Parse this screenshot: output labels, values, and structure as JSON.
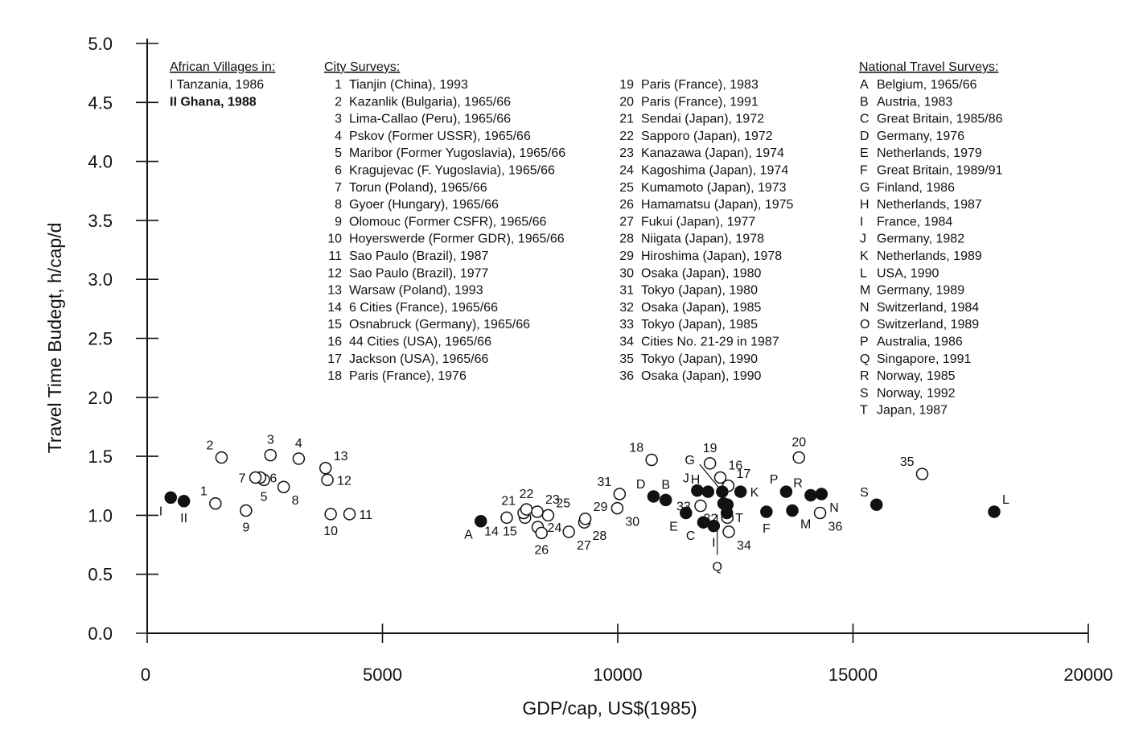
{
  "chart_data": {
    "type": "scatter",
    "xlabel": "GDP/cap, US$(1985)",
    "ylabel": "Travel Time Budegt, h/cap/d",
    "xlim": [
      0,
      20000
    ],
    "ylim": [
      0,
      5
    ],
    "x_ticks": [
      0,
      5000,
      10000,
      15000,
      20000
    ],
    "y_ticks": [
      0.0,
      0.5,
      1.0,
      1.5,
      2.0,
      2.5,
      3.0,
      3.5,
      4.0,
      4.5,
      5.0
    ],
    "x_tick_labels": [
      "0",
      "5000",
      "10000",
      "15000",
      "20000"
    ],
    "y_tick_labels": [
      "0.0",
      "0.5",
      "1.0",
      "1.5",
      "2.0",
      "2.5",
      "3.0",
      "3.5",
      "4.0",
      "4.5",
      "5.0"
    ],
    "legend": {
      "african": {
        "title": "African Villages in:",
        "items": [
          "I  Tanzania, 1986",
          "II Ghana, 1988"
        ]
      },
      "city_col1": {
        "title": "City Surveys:",
        "items": [
          {
            "n": "1",
            "t": "Tianjin (China), 1993"
          },
          {
            "n": "2",
            "t": "Kazanlik (Bulgaria), 1965/66"
          },
          {
            "n": "3",
            "t": "Lima-Callao (Peru), 1965/66"
          },
          {
            "n": "4",
            "t": "Pskov (Former USSR), 1965/66"
          },
          {
            "n": "5",
            "t": "Maribor (Former Yugoslavia), 1965/66"
          },
          {
            "n": "6",
            "t": "Kragujevac (F. Yugoslavia), 1965/66"
          },
          {
            "n": "7",
            "t": "Torun (Poland), 1965/66"
          },
          {
            "n": "8",
            "t": "Gyoer (Hungary), 1965/66"
          },
          {
            "n": "9",
            "t": "Olomouc (Former CSFR), 1965/66"
          },
          {
            "n": "10",
            "t": "Hoyerswerde (Former GDR), 1965/66"
          },
          {
            "n": "11",
            "t": "Sao Paulo (Brazil), 1987"
          },
          {
            "n": "12",
            "t": "Sao Paulo (Brazil), 1977"
          },
          {
            "n": "13",
            "t": "Warsaw (Poland), 1993"
          },
          {
            "n": "14",
            "t": "6 Cities (France), 1965/66"
          },
          {
            "n": "15",
            "t": "Osnabruck (Germany), 1965/66"
          },
          {
            "n": "16",
            "t": "44 Cities (USA), 1965/66"
          },
          {
            "n": "17",
            "t": "Jackson (USA), 1965/66"
          },
          {
            "n": "18",
            "t": "Paris (France), 1976"
          }
        ]
      },
      "city_col2": {
        "items": [
          {
            "n": "19",
            "t": "Paris (France), 1983"
          },
          {
            "n": "20",
            "t": "Paris (France), 1991"
          },
          {
            "n": "21",
            "t": "Sendai (Japan), 1972"
          },
          {
            "n": "22",
            "t": "Sapporo (Japan), 1972"
          },
          {
            "n": "23",
            "t": "Kanazawa (Japan), 1974"
          },
          {
            "n": "24",
            "t": "Kagoshima (Japan), 1974"
          },
          {
            "n": "25",
            "t": "Kumamoto (Japan), 1973"
          },
          {
            "n": "26",
            "t": "Hamamatsu (Japan), 1975"
          },
          {
            "n": "27",
            "t": "Fukui (Japan), 1977"
          },
          {
            "n": "28",
            "t": "Niigata (Japan), 1978"
          },
          {
            "n": "29",
            "t": "Hiroshima (Japan), 1978"
          },
          {
            "n": "30",
            "t": "Osaka (Japan), 1980"
          },
          {
            "n": "31",
            "t": "Tokyo (Japan), 1980"
          },
          {
            "n": "32",
            "t": "Osaka (Japan), 1985"
          },
          {
            "n": "33",
            "t": "Tokyo (Japan), 1985"
          },
          {
            "n": "34",
            "t": "Cities No. 21-29 in 1987"
          },
          {
            "n": "35",
            "t": "Tokyo (Japan), 1990"
          },
          {
            "n": "36",
            "t": "Osaka (Japan), 1990"
          }
        ]
      },
      "national": {
        "title": "National Travel Surveys:",
        "items": [
          {
            "n": "A",
            "t": "Belgium, 1965/66"
          },
          {
            "n": "B",
            "t": "Austria, 1983"
          },
          {
            "n": "C",
            "t": "Great Britain, 1985/86"
          },
          {
            "n": "D",
            "t": "Germany, 1976"
          },
          {
            "n": "E",
            "t": "Netherlands, 1979"
          },
          {
            "n": "F",
            "t": "Great Britain, 1989/91"
          },
          {
            "n": "G",
            "t": "Finland, 1986"
          },
          {
            "n": "H",
            "t": "Netherlands, 1987"
          },
          {
            "n": "I",
            "t": "France, 1984"
          },
          {
            "n": "J",
            "t": "Germany, 1982"
          },
          {
            "n": "K",
            "t": "Netherlands, 1989"
          },
          {
            "n": "L",
            "t": "USA, 1990"
          },
          {
            "n": "M",
            "t": "Germany, 1989"
          },
          {
            "n": "N",
            "t": "Switzerland, 1984"
          },
          {
            "n": "O",
            "t": "Switzerland, 1989"
          },
          {
            "n": "P",
            "t": "Australia, 1986"
          },
          {
            "n": "Q",
            "t": "Singapore, 1991"
          },
          {
            "n": "R",
            "t": "Norway, 1985"
          },
          {
            "n": "S",
            "t": "Norway, 1992"
          },
          {
            "n": "T",
            "t": "Japan, 1987"
          }
        ]
      }
    },
    "series": [
      {
        "name": "African Villages",
        "marker": "filled",
        "points": [
          {
            "label": "I",
            "x": 500,
            "y": 1.15,
            "lpos": "bl"
          },
          {
            "label": "II",
            "x": 780,
            "y": 1.12,
            "lpos": "b"
          }
        ]
      },
      {
        "name": "City Surveys",
        "marker": "open",
        "points": [
          {
            "label": "1",
            "x": 1450,
            "y": 1.1,
            "lpos": "tl"
          },
          {
            "label": "2",
            "x": 1580,
            "y": 1.49,
            "lpos": "tl"
          },
          {
            "label": "3",
            "x": 2620,
            "y": 1.51,
            "lpos": "t"
          },
          {
            "label": "4",
            "x": 3220,
            "y": 1.48,
            "lpos": "t"
          },
          {
            "label": "5",
            "x": 2480,
            "y": 1.3,
            "lpos": "b"
          },
          {
            "label": "6",
            "x": 2400,
            "y": 1.32,
            "lpos": "r"
          },
          {
            "label": "7",
            "x": 2300,
            "y": 1.32,
            "lpos": "l"
          },
          {
            "label": "8",
            "x": 2900,
            "y": 1.24,
            "lpos": "br"
          },
          {
            "label": "9",
            "x": 2100,
            "y": 1.04,
            "lpos": "b"
          },
          {
            "label": "10",
            "x": 3900,
            "y": 1.01,
            "lpos": "b"
          },
          {
            "label": "11",
            "x": 4300,
            "y": 1.01,
            "lpos": "r"
          },
          {
            "label": "12",
            "x": 3830,
            "y": 1.3,
            "lpos": "r"
          },
          {
            "label": "13",
            "x": 3790,
            "y": 1.4,
            "lpos": "tr"
          },
          {
            "label": "14",
            "x": 7640,
            "y": 0.98,
            "lpos": "bl"
          },
          {
            "label": "15",
            "x": 8030,
            "y": 0.98,
            "lpos": "bl"
          },
          {
            "label": "16",
            "x": 12180,
            "y": 1.32,
            "lpos": "tr"
          },
          {
            "label": "17",
            "x": 12350,
            "y": 1.25,
            "lpos": "tr"
          },
          {
            "label": "18",
            "x": 10720,
            "y": 1.47,
            "lpos": "tl"
          },
          {
            "label": "19",
            "x": 11960,
            "y": 1.44,
            "lpos": "t"
          },
          {
            "label": "20",
            "x": 13850,
            "y": 1.49,
            "lpos": "t"
          },
          {
            "label": "21",
            "x": 8000,
            "y": 1.02,
            "lpos": "tl"
          },
          {
            "label": "22",
            "x": 8060,
            "y": 1.05,
            "lpos": "t"
          },
          {
            "label": "23",
            "x": 8290,
            "y": 1.03,
            "lpos": "tr"
          },
          {
            "label": "24",
            "x": 8300,
            "y": 0.9,
            "lpos": "r"
          },
          {
            "label": "25",
            "x": 8520,
            "y": 1.0,
            "lpos": "tr"
          },
          {
            "label": "26",
            "x": 8380,
            "y": 0.85,
            "lpos": "b"
          },
          {
            "label": "27",
            "x": 8960,
            "y": 0.86,
            "lpos": "br"
          },
          {
            "label": "28",
            "x": 9290,
            "y": 0.94,
            "lpos": "br"
          },
          {
            "label": "29",
            "x": 9310,
            "y": 0.97,
            "lpos": "tr"
          },
          {
            "label": "30",
            "x": 9990,
            "y": 1.06,
            "lpos": "br"
          },
          {
            "label": "31",
            "x": 10040,
            "y": 1.18,
            "lpos": "tl"
          },
          {
            "label": "32",
            "x": 12330,
            "y": 0.98,
            "lpos": "l"
          },
          {
            "label": "33",
            "x": 11760,
            "y": 1.08,
            "lpos": "l"
          },
          {
            "label": "34",
            "x": 12360,
            "y": 0.86,
            "lpos": "br"
          },
          {
            "label": "35",
            "x": 16470,
            "y": 1.35,
            "lpos": "tl"
          },
          {
            "label": "36",
            "x": 14300,
            "y": 1.02,
            "lpos": "br"
          }
        ]
      },
      {
        "name": "National Travel Surveys",
        "marker": "filled",
        "points": [
          {
            "label": "A",
            "x": 7090,
            "y": 0.95,
            "lpos": "bl"
          },
          {
            "label": "B",
            "x": 11020,
            "y": 1.13,
            "lpos": "t"
          },
          {
            "label": "C",
            "x": 11820,
            "y": 0.94,
            "lpos": "bl"
          },
          {
            "label": "D",
            "x": 10760,
            "y": 1.16,
            "lpos": "tl"
          },
          {
            "label": "E",
            "x": 11450,
            "y": 1.02,
            "lpos": "bl"
          },
          {
            "label": "F",
            "x": 13160,
            "y": 1.03,
            "lpos": "b"
          },
          {
            "label": "G",
            "x": 12220,
            "y": 1.2,
            "lpos": "gline"
          },
          {
            "label": "H",
            "x": 11920,
            "y": 1.2,
            "lpos": "tl"
          },
          {
            "label": "I",
            "x": 12040,
            "y": 0.91,
            "lpos": "b"
          },
          {
            "label": "J",
            "x": 11690,
            "y": 1.21,
            "lpos": "tl"
          },
          {
            "label": "K",
            "x": 12610,
            "y": 1.2,
            "lpos": "r"
          },
          {
            "label": "L",
            "x": 18000,
            "y": 1.03,
            "lpos": "tr"
          },
          {
            "label": "M",
            "x": 13710,
            "y": 1.04,
            "lpos": "br"
          },
          {
            "label": "N",
            "x": 14330,
            "y": 1.18,
            "lpos": "br"
          },
          {
            "label": "O",
            "x": 12250,
            "y": 1.1,
            "lpos": "none"
          },
          {
            "label": "P",
            "x": 13580,
            "y": 1.2,
            "lpos": "tl"
          },
          {
            "label": "Q",
            "x": 12320,
            "y": 1.02,
            "lpos": "qline"
          },
          {
            "label": "R",
            "x": 14100,
            "y": 1.17,
            "lpos": "tl"
          },
          {
            "label": "S",
            "x": 15500,
            "y": 1.09,
            "lpos": "tl"
          },
          {
            "label": "T",
            "x": 12330,
            "y": 1.09,
            "lpos": "br"
          }
        ]
      }
    ]
  }
}
